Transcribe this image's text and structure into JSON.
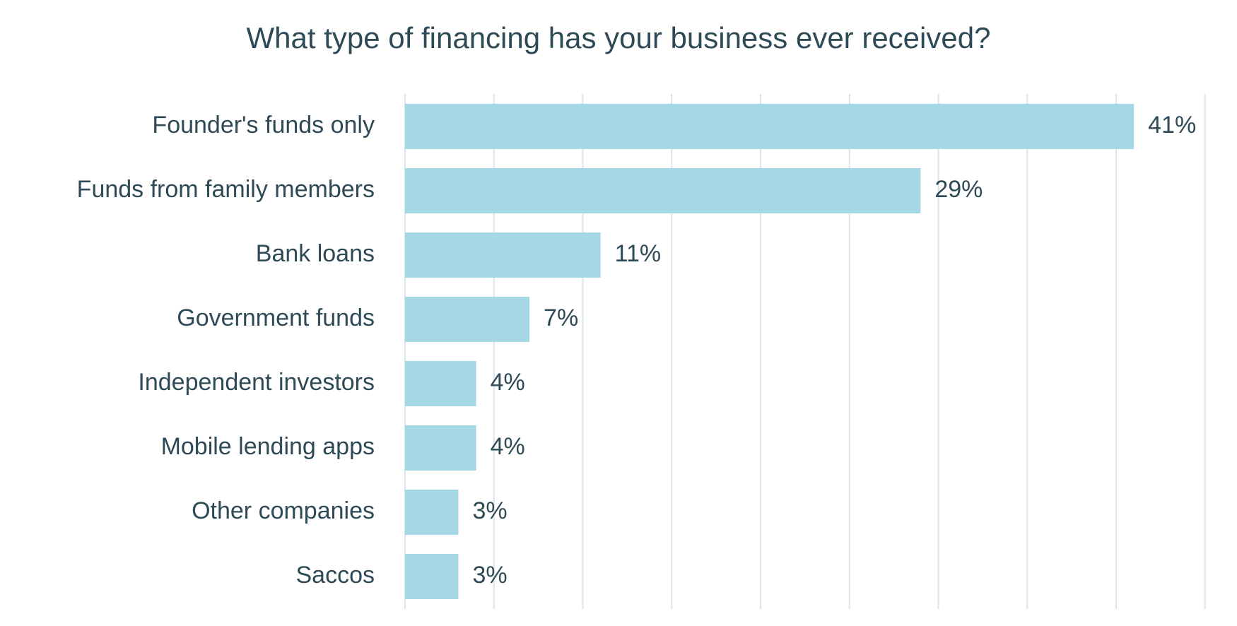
{
  "chart_data": {
    "type": "bar",
    "orientation": "horizontal",
    "title": "What type of financing has your business ever received?",
    "categories": [
      "Founder's funds only",
      "Funds from family members",
      "Bank loans",
      "Government funds",
      "Independent investors",
      "Mobile lending apps",
      "Other companies",
      "Saccos"
    ],
    "values": [
      41,
      29,
      11,
      7,
      4,
      4,
      3,
      3
    ],
    "data_labels": [
      "41%",
      "29%",
      "11%",
      "7%",
      "4%",
      "4%",
      "3%",
      "3%"
    ],
    "xlim": [
      0,
      45
    ],
    "x_gridline_step": 5,
    "grid": true,
    "x_tick_labels_visible": false,
    "legend": "none",
    "colors": {
      "bar": "#a4d8e5",
      "grid": "#d9e6ec",
      "text": "#2e4a56"
    }
  }
}
